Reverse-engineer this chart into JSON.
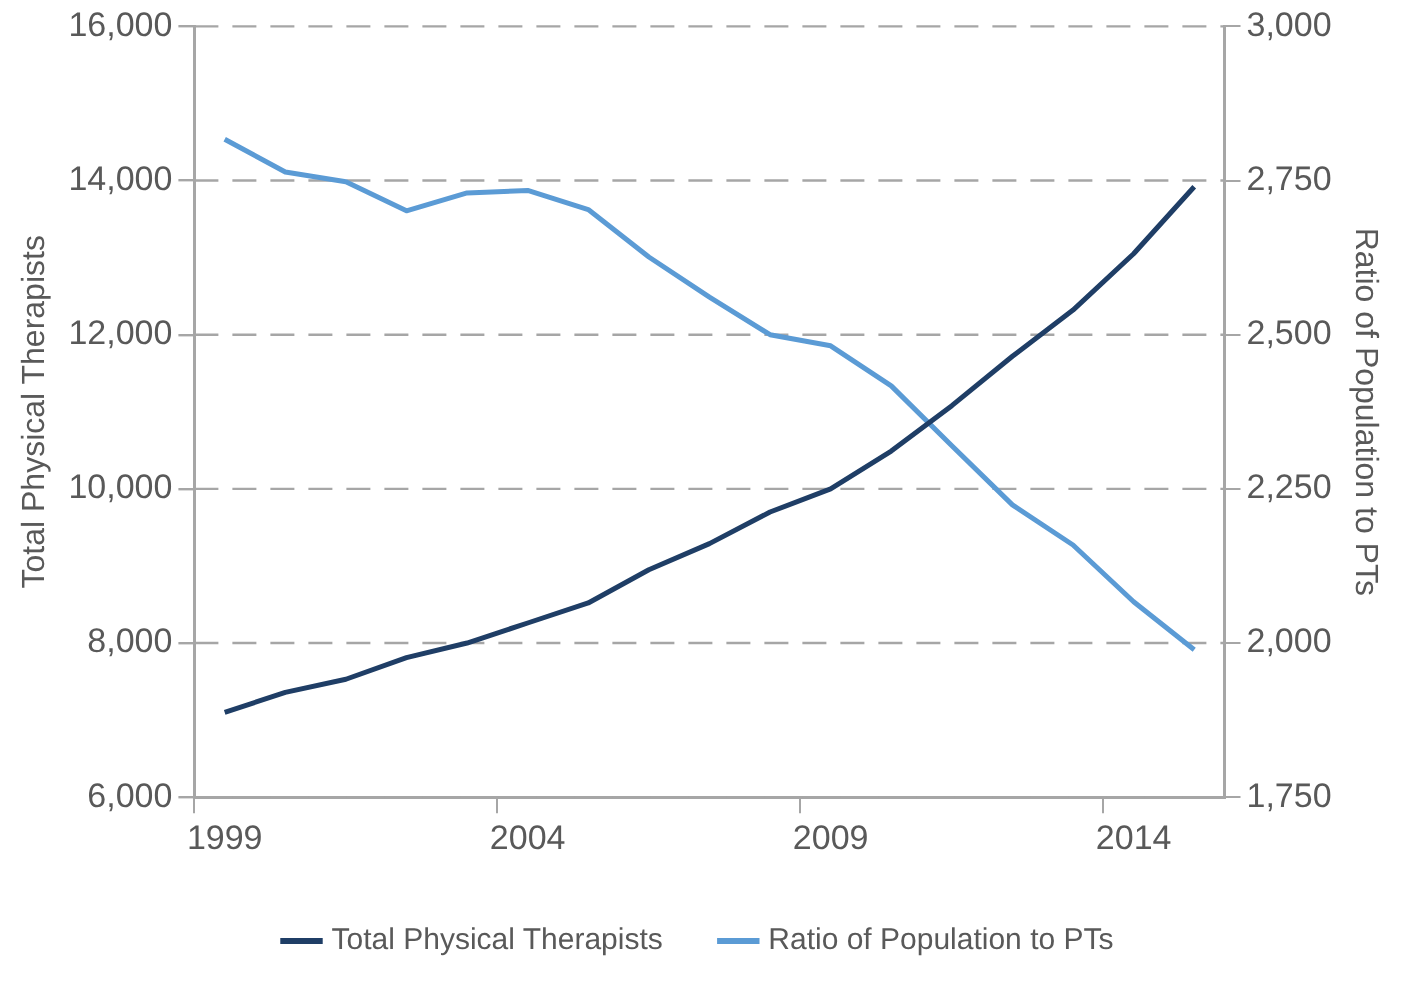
{
  "chart_data": {
    "type": "line",
    "categories": [
      "1999",
      null,
      null,
      null,
      null,
      "2004",
      null,
      null,
      null,
      null,
      "2009",
      null,
      null,
      null,
      null,
      "2014",
      null
    ],
    "series": [
      {
        "name": "Total Physical Therapists",
        "color": "#1f3e66",
        "values": [
          7100,
          7360,
          7530,
          7810,
          8000,
          8260,
          8520,
          8950,
          9290,
          9700,
          10000,
          10490,
          11080,
          11720,
          12320,
          13050,
          13920
        ]
      },
      {
        "name": "Ratio of Population to PTs",
        "color": "#5b9bd5",
        "axis": "y2",
        "values": [
          2817,
          2764,
          2748,
          2701,
          2730,
          2734,
          2703,
          2626,
          2561,
          2500,
          2482,
          2417,
          2320,
          2224,
          2159,
          2067,
          1989
        ]
      }
    ],
    "ylabel": "Total Physical Therapists",
    "y2label": "Ratio of Population to PTs",
    "ylim": [
      6000,
      16000
    ],
    "yticks": [
      {
        "value": 6000,
        "label": "6,000"
      },
      {
        "value": 8000,
        "label": "8,000"
      },
      {
        "value": 10000,
        "label": "10,000"
      },
      {
        "value": 12000,
        "label": "12,000"
      },
      {
        "value": 14000,
        "label": "14,000"
      },
      {
        "value": 16000,
        "label": "16,000"
      }
    ],
    "y2lim": [
      1750,
      3000
    ],
    "y2ticks": [
      {
        "value": 1750,
        "label": "1,750"
      },
      {
        "value": 2000,
        "label": "2,000"
      },
      {
        "value": 2250,
        "label": "2,250"
      },
      {
        "value": 2500,
        "label": "2,500"
      },
      {
        "value": 2750,
        "label": "2,750"
      },
      {
        "value": 3000,
        "label": "3,000"
      }
    ],
    "grid": "y",
    "legend": "bottom",
    "marker": "none",
    "line_style": "solid"
  }
}
